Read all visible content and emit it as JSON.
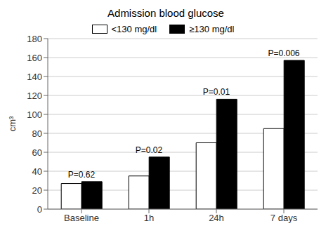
{
  "chart_data": {
    "type": "bar",
    "title": "Admission blood glucose",
    "ylabel": "cm³",
    "categories": [
      "Baseline",
      "1h",
      "24h",
      "7 days"
    ],
    "series": [
      {
        "name": "<130 mg/dl",
        "color": "#ffffff",
        "values": [
          27,
          35,
          70,
          85
        ]
      },
      {
        "name": "≥130 mg/dl",
        "color": "#000000",
        "values": [
          29,
          55,
          116,
          157
        ]
      }
    ],
    "annotations": [
      "P=0.62",
      "P=0.02",
      "P=0.01",
      "P=0.006"
    ],
    "ylim": [
      0,
      180
    ],
    "yticks": [
      0,
      20,
      40,
      60,
      80,
      100,
      120,
      140,
      160,
      180
    ],
    "grid": true,
    "legend": "top"
  }
}
